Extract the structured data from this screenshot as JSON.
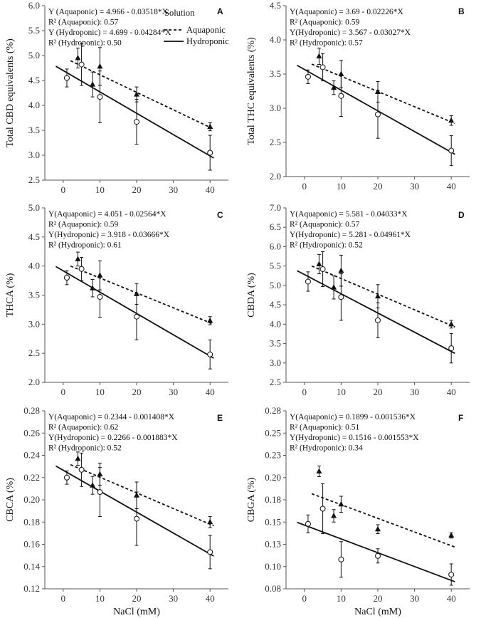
{
  "legend": {
    "title": "Solution",
    "aquaponic": "Aquaponic",
    "hydroponic": "Hydroponic"
  },
  "colors": {
    "ink": "#111111",
    "axis": "#555555"
  },
  "chart_data": [
    {
      "type": "scatter",
      "panel": "A",
      "ylabel": "Total CBD equivalents (%)",
      "xlabel": "",
      "xlim": [
        -5,
        45
      ],
      "xticks": [
        0,
        10,
        20,
        30,
        40
      ],
      "ylim": [
        2.5,
        6.0
      ],
      "yticks": [
        "2.5",
        "3.0",
        "3.5",
        "4.0",
        "4.5",
        "5.0",
        "5.5",
        "6.0"
      ],
      "annotations": [
        "Y (Aquaponic) = 4.966 - 0.03518*X",
        "R² (Aquaponic): 0.57",
        "Y (Hydroponic) = 4.699 - 0.04284*X",
        "R² (Hydroponic): 0.50"
      ],
      "series": [
        {
          "name": "Aquaponic",
          "marker": "triangle",
          "x": [
            4,
            8,
            10,
            20,
            40
          ],
          "y": [
            4.95,
            4.42,
            4.78,
            4.22,
            3.57
          ],
          "err": [
            0.2,
            0.25,
            0.38,
            0.15,
            0.08
          ],
          "fit": [
            4.966,
            -0.03518
          ],
          "fit_range": [
            2,
            41
          ]
        },
        {
          "name": "Hydroponic",
          "marker": "circle",
          "x": [
            1,
            5,
            10,
            20,
            40
          ],
          "y": [
            4.55,
            4.82,
            4.17,
            3.67,
            3.05
          ],
          "err": [
            0.18,
            0.42,
            0.52,
            0.45,
            0.35
          ],
          "fit": [
            4.699,
            -0.04284
          ],
          "fit_range": [
            -2,
            41
          ]
        }
      ]
    },
    {
      "type": "scatter",
      "panel": "B",
      "ylabel": "Total THC equivalents (%)",
      "xlabel": "",
      "xlim": [
        -5,
        45
      ],
      "xticks": [
        0,
        10,
        20,
        30,
        40
      ],
      "ylim": [
        2.0,
        4.5
      ],
      "yticks": [
        "2.0",
        "2.5",
        "3.0",
        "3.5",
        "4.0",
        "4.5"
      ],
      "annotations": [
        "Y(Aquaponic) = 3.69 - 0.02226*X",
        "R² (Aquaponic): 0.59",
        "Y(Hydroponic) = 3.567 - 0.03027*X",
        "R² (Hydroponic): 0.57"
      ],
      "series": [
        {
          "name": "Aquaponic",
          "marker": "triangle",
          "x": [
            4,
            8,
            10,
            20,
            40
          ],
          "y": [
            3.76,
            3.3,
            3.5,
            3.24,
            2.82
          ],
          "err": [
            0.12,
            0.1,
            0.2,
            0.15,
            0.07
          ],
          "fit": [
            3.69,
            -0.02226
          ],
          "fit_range": [
            2,
            41
          ]
        },
        {
          "name": "Hydroponic",
          "marker": "circle",
          "x": [
            1,
            5,
            10,
            20,
            40
          ],
          "y": [
            3.46,
            3.6,
            3.18,
            2.91,
            2.38
          ],
          "err": [
            0.1,
            0.2,
            0.3,
            0.35,
            0.22
          ],
          "fit": [
            3.567,
            -0.03027
          ],
          "fit_range": [
            -2,
            41
          ]
        }
      ]
    },
    {
      "type": "scatter",
      "panel": "C",
      "ylabel": "THCA (%)",
      "xlabel": "",
      "xlim": [
        -5,
        45
      ],
      "xticks": [
        0,
        10,
        20,
        30,
        40
      ],
      "ylim": [
        2.0,
        5.0
      ],
      "yticks": [
        "2.0",
        "2.5",
        "3.0",
        "3.5",
        "4.0",
        "4.5",
        "5.0"
      ],
      "annotations": [
        "Y(Aquaponic) = 4.051 - 0.02564*X",
        "R² (Aquaponic): 0.59",
        "Y(Hydroponic) = 3.918 - 0.03666*X",
        "R² (Hydroponic): 0.61"
      ],
      "series": [
        {
          "name": "Aquaponic",
          "marker": "triangle",
          "x": [
            4,
            8,
            10,
            20,
            40
          ],
          "y": [
            4.12,
            3.62,
            3.84,
            3.52,
            3.06
          ],
          "err": [
            0.12,
            0.15,
            0.25,
            0.18,
            0.07
          ],
          "fit": [
            4.051,
            -0.02564
          ],
          "fit_range": [
            2,
            41
          ]
        },
        {
          "name": "Hydroponic",
          "marker": "circle",
          "x": [
            1,
            5,
            10,
            20,
            40
          ],
          "y": [
            3.8,
            3.95,
            3.47,
            3.13,
            2.48
          ],
          "err": [
            0.12,
            0.2,
            0.35,
            0.4,
            0.25
          ],
          "fit": [
            3.918,
            -0.03666
          ],
          "fit_range": [
            -2,
            41
          ]
        }
      ]
    },
    {
      "type": "scatter",
      "panel": "D",
      "ylabel": "CBDA (%)",
      "xlabel": "",
      "xlim": [
        -5,
        45
      ],
      "xticks": [
        0,
        10,
        20,
        30,
        40
      ],
      "ylim": [
        2.5,
        7.0
      ],
      "yticks": [
        "2.5",
        "3.0",
        "3.5",
        "4.0",
        "4.5",
        "5.0",
        "5.5",
        "6.0",
        "6.5",
        "7.0"
      ],
      "annotations": [
        "Y(Aquaponic) = 5.581 - 0.04033*X",
        "R² (Aquaponic): 0.57",
        "Y(Hydroponic) = 5.281 - 0.04961*X",
        "R² (Hydroponic): 0.52"
      ],
      "series": [
        {
          "name": "Aquaponic",
          "marker": "triangle",
          "x": [
            4,
            8,
            10,
            20,
            40
          ],
          "y": [
            5.55,
            4.95,
            5.38,
            4.72,
            4.0
          ],
          "err": [
            0.25,
            0.3,
            0.4,
            0.3,
            0.1
          ],
          "fit": [
            5.581,
            -0.04033
          ],
          "fit_range": [
            2,
            41
          ]
        },
        {
          "name": "Hydroponic",
          "marker": "circle",
          "x": [
            1,
            5,
            10,
            20,
            40
          ],
          "y": [
            5.1,
            5.42,
            4.7,
            4.1,
            3.38
          ],
          "err": [
            0.25,
            0.45,
            0.6,
            0.45,
            0.38
          ],
          "fit": [
            5.281,
            -0.04961
          ],
          "fit_range": [
            -2,
            41
          ]
        }
      ]
    },
    {
      "type": "scatter",
      "panel": "E",
      "ylabel": "CBCA (%)",
      "xlabel": "NaCl (mM)",
      "xlim": [
        -5,
        45
      ],
      "xticks": [
        0,
        10,
        20,
        30,
        40
      ],
      "ylim": [
        0.12,
        0.28
      ],
      "yticks": [
        "0.12",
        "0.14",
        "0.16",
        "0.18",
        "0.20",
        "0.22",
        "0.24",
        "0.26",
        "0.28"
      ],
      "annotations": [
        "Y(Aquaponic) = 0.2344 - 0.001408*X",
        "R² (Aquaponic): 0.62",
        "Y(Hydroponic) = 0.2266 - 0.001883*X",
        "R² (Hydroponic): 0.52"
      ],
      "series": [
        {
          "name": "Aquaponic",
          "marker": "triangle",
          "x": [
            4,
            8,
            10,
            20,
            40
          ],
          "y": [
            0.237,
            0.213,
            0.223,
            0.204,
            0.18
          ],
          "err": [
            0.006,
            0.008,
            0.01,
            0.012,
            0.005
          ],
          "fit": [
            0.2344,
            -0.001408
          ],
          "fit_range": [
            2,
            41
          ]
        },
        {
          "name": "Hydroponic",
          "marker": "circle",
          "x": [
            1,
            5,
            10,
            20,
            40
          ],
          "y": [
            0.22,
            0.227,
            0.207,
            0.183,
            0.153
          ],
          "err": [
            0.006,
            0.015,
            0.022,
            0.024,
            0.015
          ],
          "fit": [
            0.2266,
            -0.001883
          ],
          "fit_range": [
            -2,
            41
          ]
        }
      ]
    },
    {
      "type": "scatter",
      "panel": "F",
      "ylabel": "CBGA (%)",
      "xlabel": "NaCl (mM)",
      "xlim": [
        -5,
        45
      ],
      "xticks": [
        0,
        10,
        20,
        30,
        40
      ],
      "ylim": [
        0.08,
        0.28
      ],
      "yticks": [
        "0.08",
        "0.10",
        "0.13",
        "0.15",
        "0.18",
        "0.20",
        "0.23",
        "0.25",
        "0.28"
      ],
      "annotations": [
        "Y(Aquaponic) = 0.1899 - 0.001536*X",
        "R² (Aquaponic): 0.51",
        "Y(Hydroponic) = 0.1516 - 0.001553*X",
        "R² (Hydroponic): 0.34"
      ],
      "series": [
        {
          "name": "Aquaponic",
          "marker": "triangle",
          "x": [
            4,
            8,
            10,
            20,
            40
          ],
          "y": [
            0.212,
            0.162,
            0.175,
            0.147,
            0.14
          ],
          "err": [
            0.006,
            0.007,
            0.009,
            0.005,
            0.003
          ],
          "fit": [
            0.1899,
            -0.001536
          ],
          "fit_range": [
            2,
            41
          ]
        },
        {
          "name": "Hydroponic",
          "marker": "circle",
          "x": [
            1,
            5,
            10,
            20,
            40
          ],
          "y": [
            0.153,
            0.17,
            0.113,
            0.117,
            0.096
          ],
          "err": [
            0.01,
            0.028,
            0.02,
            0.008,
            0.012
          ],
          "fit": [
            0.1516,
            -0.001553
          ],
          "fit_range": [
            -2,
            41
          ]
        }
      ]
    }
  ]
}
